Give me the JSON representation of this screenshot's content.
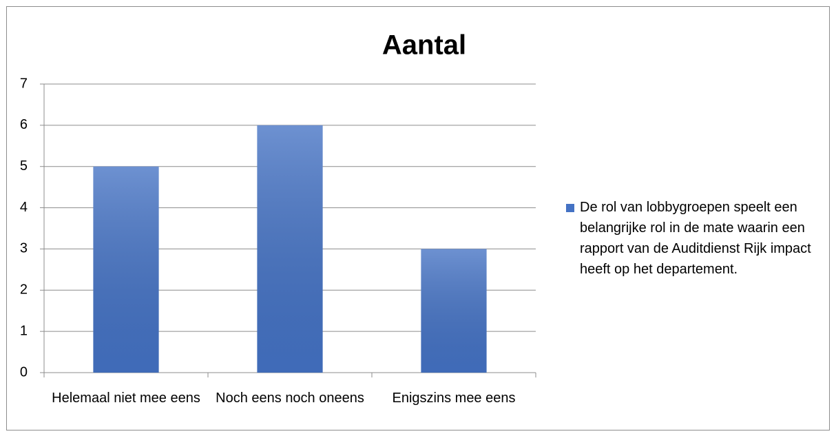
{
  "chart_data": {
    "type": "bar",
    "title": "Aantal",
    "categories": [
      "Helemaal niet mee eens",
      "Noch eens noch oneens",
      "Enigszins mee eens"
    ],
    "series": [
      {
        "name": "De rol van lobbygroepen speelt een belangrijke rol in de mate waarin een rapport van de Auditdienst Rijk impact heeft op het departement.",
        "color": "#4472c4",
        "values": [
          5,
          6,
          3
        ]
      }
    ],
    "ylim": [
      0,
      7
    ],
    "yticks": [
      0,
      1,
      2,
      3,
      4,
      5,
      6,
      7
    ],
    "grid": true,
    "legend": "right"
  }
}
